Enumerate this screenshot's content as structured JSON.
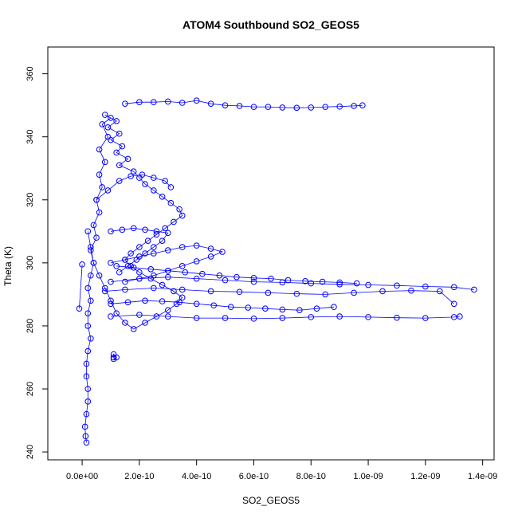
{
  "chart_data": {
    "type": "scatter",
    "title": "ATOM4 Southbound SO2_GEOS5",
    "xlabel": "SO2_GEOS5",
    "ylabel": "Theta (K)",
    "xlim": [
      -1.2e-10,
      1.44e-09
    ],
    "ylim": [
      237.5,
      368.5
    ],
    "xticks": [
      0,
      2e-10,
      4e-10,
      6e-10,
      8e-10,
      1e-09,
      1.2e-09,
      1.4e-09
    ],
    "xtick_labels": [
      "0.0e+00",
      "2.0e-10",
      "4.0e-10",
      "6.0e-10",
      "8.0e-10",
      "1.0e-09",
      "1.2e-09",
      "1.4e-09"
    ],
    "yticks": [
      240,
      260,
      280,
      300,
      320,
      340,
      360
    ],
    "ytick_labels": [
      "240",
      "260",
      "280",
      "300",
      "320",
      "340",
      "360"
    ],
    "marker": "open-circle",
    "color": "#0000ff",
    "grid": false,
    "series": [
      {
        "x": [
          1.5e-11,
          1.2e-11,
          1e-11,
          1.5e-11,
          2e-11,
          2e-11,
          1.5e-11,
          1.5e-11,
          2e-11,
          3e-11,
          2e-11,
          2e-11,
          3e-11,
          2e-11,
          3e-11,
          4e-11,
          3e-11,
          5e-11,
          4e-11,
          6e-11,
          5e-11,
          7e-11,
          6e-11,
          8e-11,
          6e-11,
          9e-11,
          7e-11,
          1e-10,
          8e-11,
          1.2e-10,
          9e-11,
          1.3e-10,
          1e-10,
          1.4e-10,
          1.2e-10,
          1.6e-10,
          1.3e-10,
          1.8e-10,
          2e-10,
          2.2e-10,
          2.5e-10,
          2.8e-10,
          3.1e-10,
          3.4e-10,
          3.5e-10,
          3.2e-10,
          2.9e-10,
          2.6e-10,
          2.3e-10,
          2e-10,
          1.7e-10,
          1.5e-10,
          1.7e-10,
          2e-10,
          2.4e-10,
          2.8e-10,
          3.2e-10,
          3.5e-10,
          3.3e-10,
          3e-10,
          2.6e-10,
          2.2e-10,
          1.8e-10,
          1.5e-10,
          1.2e-10,
          1e-10,
          8e-11,
          6e-11,
          4e-11,
          3e-11,
          2e-11
        ],
        "y": [
          243,
          245,
          248,
          252,
          256,
          260,
          264,
          268,
          272,
          276,
          280,
          284,
          288,
          292,
          296,
          300,
          304,
          308,
          312,
          316,
          320,
          324,
          328,
          332,
          336,
          340,
          344,
          346,
          347,
          345,
          343,
          341,
          339,
          337,
          335,
          333,
          331,
          329,
          327,
          325,
          323,
          321,
          319,
          317,
          315,
          313,
          311,
          309,
          307,
          305,
          303,
          301,
          299,
          297,
          295,
          293,
          291,
          289,
          287,
          285,
          283,
          281,
          279,
          281,
          284,
          288,
          292,
          296,
          300,
          305,
          310
        ]
      },
      {
        "x": [
          1.5e-10,
          2e-10,
          2.5e-10,
          3e-10,
          3.5e-10,
          4e-10,
          4.5e-10,
          5e-10,
          5.5e-10,
          6e-10,
          6.5e-10,
          7e-10,
          7.5e-10,
          8e-10,
          8.5e-10,
          9e-10,
          9.5e-10,
          9.8e-10
        ],
        "y": [
          350.5,
          351,
          351,
          351.2,
          350.8,
          351.5,
          350.5,
          350,
          349.8,
          349.5,
          349.5,
          349.3,
          349.2,
          349.3,
          349.5,
          349.6,
          349.8,
          350
        ]
      },
      {
        "x": [
          1e-10,
          2e-10,
          3e-10,
          4e-10,
          5e-10,
          6e-10,
          7e-10,
          8e-10,
          9e-10,
          1e-09,
          1.1e-09,
          1.2e-09,
          1.3e-09,
          1.37e-09
        ],
        "y": [
          294,
          295,
          295.5,
          295,
          294.5,
          294,
          293.8,
          293.5,
          293.2,
          293,
          292.8,
          292.5,
          292.3,
          291.5
        ]
      },
      {
        "x": [
          8e-11,
          1.5e-10,
          2.5e-10,
          3.5e-10,
          4.5e-10,
          5.5e-10,
          6.5e-10,
          7.5e-10,
          8.5e-10,
          9.5e-10,
          1.05e-09,
          1.15e-09,
          1.25e-09,
          1.3e-09
        ],
        "y": [
          291,
          291.5,
          292,
          291.5,
          291,
          290.8,
          290.5,
          290.2,
          290,
          290.5,
          291,
          291.2,
          291,
          287
        ]
      },
      {
        "x": [
          1e-10,
          2e-10,
          3e-10,
          4e-10,
          5e-10,
          6e-10,
          7e-10,
          8e-10,
          9e-10,
          1e-09,
          1.1e-09,
          1.2e-09,
          1.3e-09,
          1.32e-09
        ],
        "y": [
          283,
          283.5,
          283,
          282.5,
          282.5,
          282.3,
          282.5,
          282.8,
          283,
          282.8,
          282.6,
          282.5,
          282.8,
          283
        ]
      },
      {
        "x": [
          1e-10,
          1.6e-10,
          2.2e-10,
          2.8e-10,
          3.4e-10,
          4e-10,
          4.6e-10,
          5.2e-10,
          5.8e-10,
          6.4e-10,
          7e-10,
          7.6e-10,
          8.2e-10,
          8.8e-10
        ],
        "y": [
          287,
          287.5,
          288,
          287.8,
          287.5,
          287,
          286.5,
          286,
          285.8,
          285.5,
          285.2,
          285,
          285.5,
          286
        ]
      },
      {
        "x": [
          1e-10,
          1.5e-10,
          2e-10,
          2.5e-10,
          3e-10,
          3.5e-10,
          4e-10,
          4.5e-10,
          4.9e-10,
          4.5e-10,
          4e-10,
          3.5e-10,
          3e-10,
          2.5e-10,
          2e-10,
          1.5e-10
        ],
        "y": [
          300,
          301,
          302,
          303,
          304,
          305,
          305.5,
          304.5,
          303.5,
          302,
          300.5,
          299,
          297.5,
          296,
          295,
          294
        ]
      },
      {
        "x": [
          1.2e-10,
          1.8e-10,
          2.4e-10,
          3e-10,
          3.6e-10,
          4.2e-10,
          4.8e-10,
          5.4e-10,
          6e-10,
          6.6e-10,
          7.2e-10,
          7.8e-10,
          8.4e-10,
          9e-10,
          9.6e-10
        ],
        "y": [
          299,
          298.5,
          298,
          297.5,
          297,
          296.5,
          296,
          295.5,
          295.2,
          295,
          294.5,
          294.2,
          294,
          293.8,
          293.5
        ]
      },
      {
        "x": [
          1e-10,
          1.4e-10,
          1.8e-10,
          2.2e-10,
          2.6e-10,
          3e-10,
          2.8e-10,
          2.5e-10,
          2.2e-10,
          1.9e-10,
          1.6e-10,
          1.3e-10
        ],
        "y": [
          310,
          310.5,
          311,
          310.5,
          310,
          309.5,
          307,
          305,
          303,
          301,
          299,
          297
        ]
      },
      {
        "x": [
          5e-11,
          9e-11,
          1.3e-10,
          1.7e-10,
          2.1e-10,
          2.5e-10,
          2.9e-10,
          3.1e-10
        ],
        "y": [
          320,
          323,
          326,
          327.5,
          328,
          327,
          326,
          324
        ]
      },
      {
        "x": [
          1.1e-10,
          1.1e-10,
          1.2e-10,
          1.1e-10
        ],
        "y": [
          270,
          271,
          270,
          269.5
        ]
      },
      {
        "x": [
          -1e-11,
          0.0
        ],
        "y": [
          285.5,
          299.5
        ]
      }
    ]
  }
}
